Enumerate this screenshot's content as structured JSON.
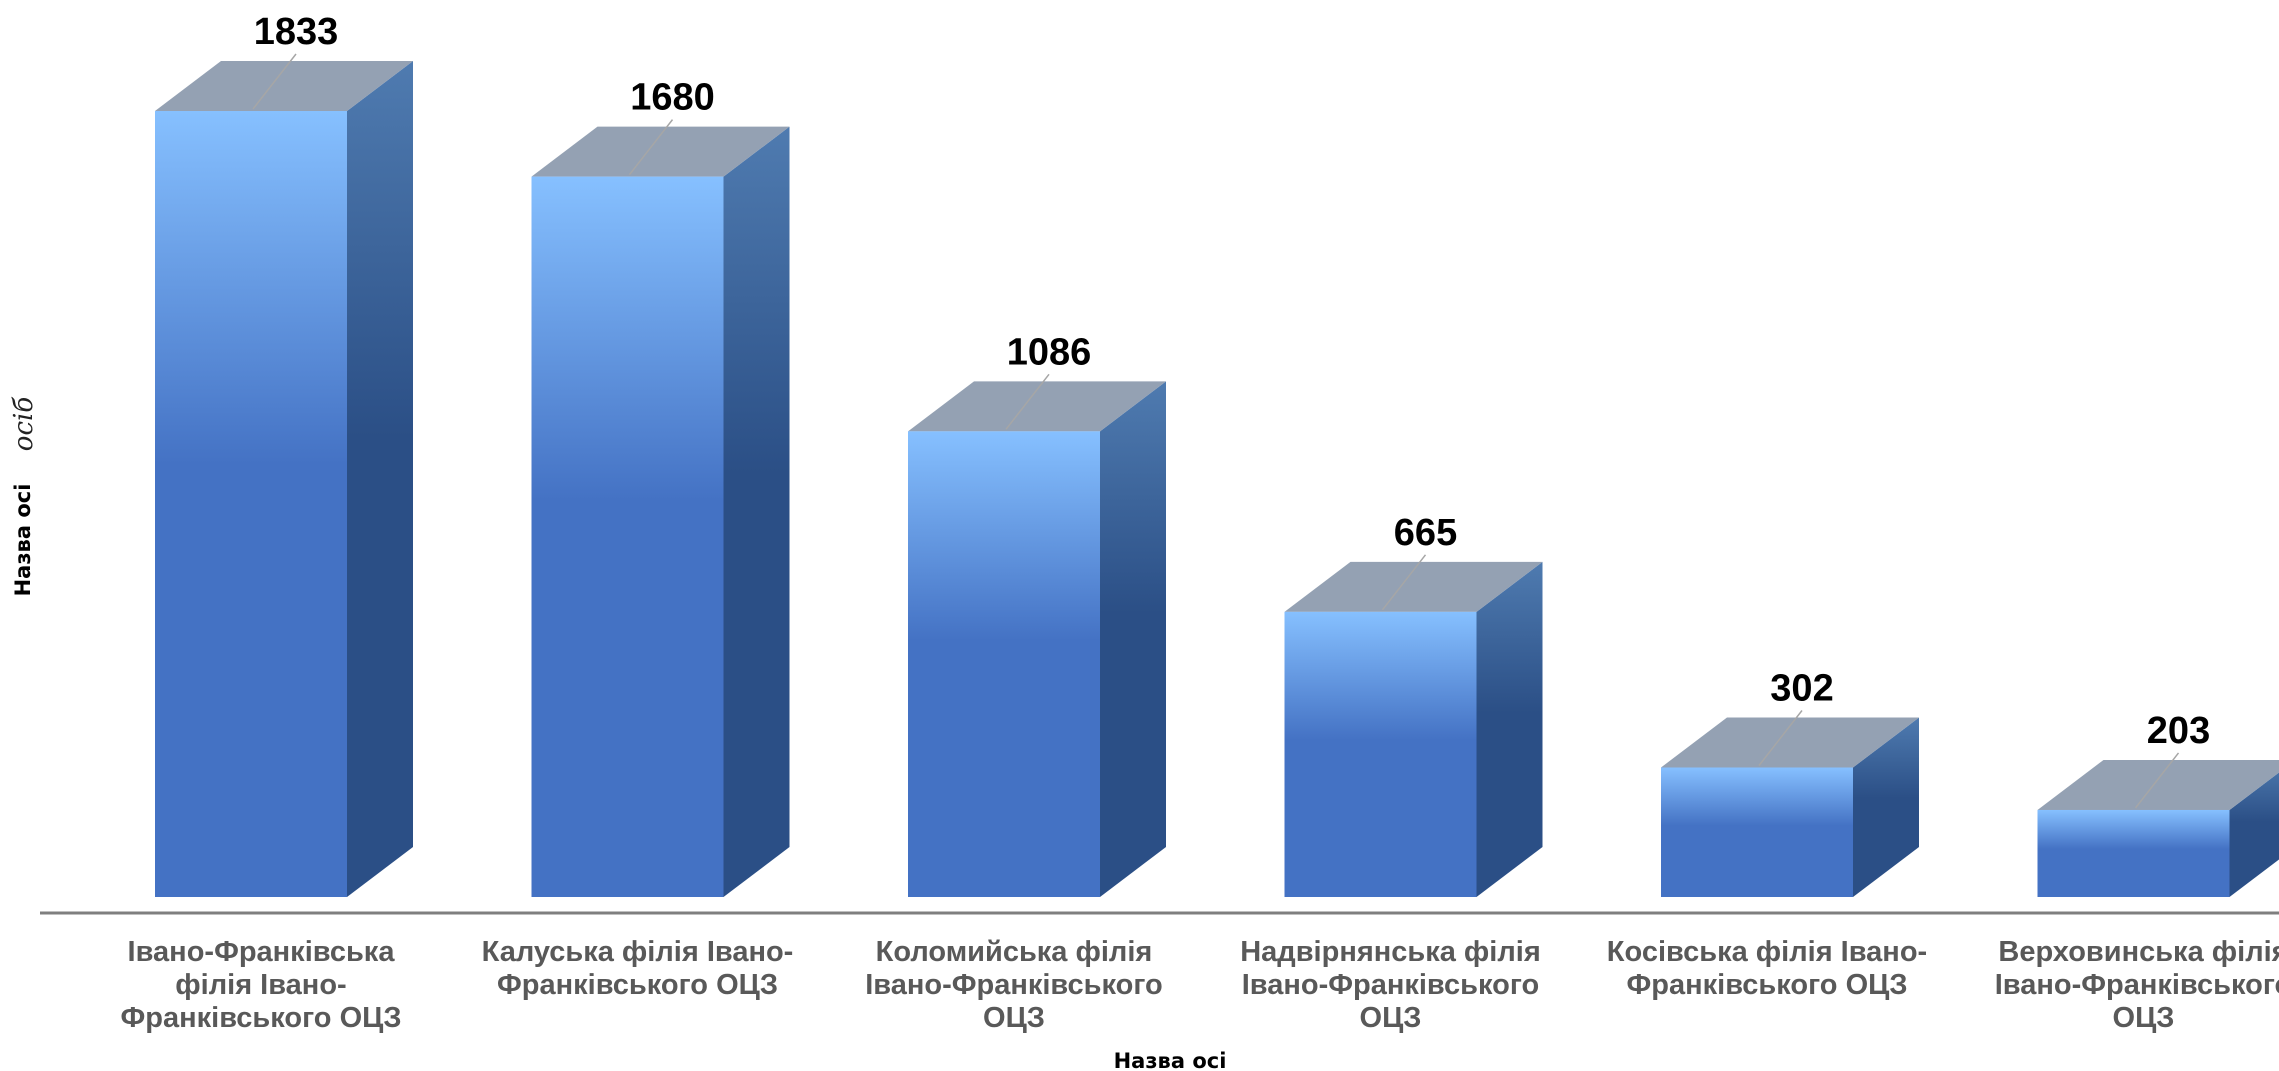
{
  "chart_data": {
    "type": "bar",
    "style": "3d",
    "categories": [
      [
        "Івано-Франківська",
        "філія Івано-",
        "Франківського ОЦЗ"
      ],
      [
        "Калуська філія Івано-",
        "Франківського ОЦЗ"
      ],
      [
        "Коломийська філія",
        "Івано-Франківського",
        "ОЦЗ"
      ],
      [
        "Надвірнянська філія",
        "Івано-Франківського",
        "ОЦЗ"
      ],
      [
        "Косівська філія Івано-",
        "Франківського ОЦЗ"
      ],
      [
        "Верховинська філія",
        "Івано-Франківського",
        "ОЦЗ"
      ]
    ],
    "values": [
      1833,
      1680,
      1086,
      665,
      302,
      203
    ],
    "data_labels": [
      "1833",
      "1680",
      "1086",
      "665",
      "302",
      "203"
    ],
    "xlabel": "Назва осі",
    "ylabel": "Назва осі",
    "ylabel_extra": "осіб",
    "grid": false,
    "legend": "none",
    "colors": {
      "front_top": "#86c0ff",
      "front_main": "#4472c4",
      "side_top": "#4f7bb0",
      "side_bottom": "#2b4f86",
      "top_face": "#94a1b3",
      "axis": "#7f7f7f",
      "leader": "#a6a6a6"
    }
  }
}
